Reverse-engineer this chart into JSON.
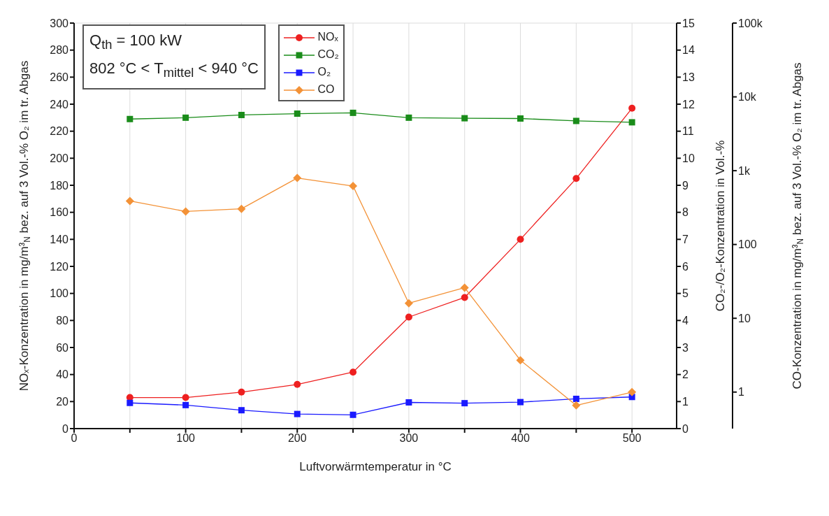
{
  "chart_data": {
    "type": "line",
    "xlabel": "Luftvorwärmtemperatur in °C",
    "ylabel": "NOₓ-Konzentration in mg/m³$_{N}$ bez. auf 3 Vol.-% O₂ im tr. Abgas",
    "y2label": "CO₂-/O₂-Konzentration  in Vol.-%",
    "y3label": "CO-Konzentration in mg/m³$_{N}$ bez. auf 3 Vol.-% O₂ im tr. Abgas",
    "annotations": [
      "Q$_{th}$ = 100 kW",
      "802 °C < T$_{mittel}$ < 940 °C"
    ],
    "x": [
      50,
      100,
      150,
      200,
      250,
      300,
      350,
      400,
      450,
      500
    ],
    "xlim": [
      0,
      540
    ],
    "xticks": [
      0,
      {
        "value": 50,
        "label": null
      },
      100,
      {
        "value": 150,
        "label": null
      },
      200,
      {
        "value": 250,
        "label": null
      },
      300,
      {
        "value": 350,
        "label": null
      },
      400,
      {
        "value": 450,
        "label": null
      },
      500
    ],
    "ylim": [
      0,
      300
    ],
    "yticks": [
      0,
      20,
      40,
      60,
      80,
      100,
      120,
      140,
      160,
      180,
      200,
      220,
      240,
      260,
      280,
      300
    ],
    "y2lim": [
      0,
      15
    ],
    "y2ticks": [
      0,
      1,
      2,
      3,
      4,
      5,
      6,
      7,
      8,
      9,
      10,
      11,
      12,
      13,
      14,
      15
    ],
    "y3lim": [
      0.32,
      100000
    ],
    "y3ticks": [
      1,
      10,
      100,
      {
        "value": 1000,
        "label": "1k"
      },
      {
        "value": 10000,
        "label": "10k"
      },
      {
        "value": 100000,
        "label": "100k"
      }
    ],
    "log": "y3",
    "grid": true,
    "legend": "top",
    "series": [
      {
        "name": "NOₓ",
        "color": "#ee2020",
        "marker": "circle",
        "values": [
          23,
          23,
          27,
          32.7,
          41.8,
          82.5,
          97,
          140,
          185,
          237
        ]
      },
      {
        "name": "CO₂",
        "color": "#1a8c1a",
        "marker": "square",
        "axis": "y2",
        "values": [
          11.45,
          11.5,
          11.6,
          11.65,
          11.68,
          11.5,
          11.48,
          11.47,
          11.38,
          11.33
        ]
      },
      {
        "name": "O₂",
        "color": "#1a1aff",
        "marker": "square",
        "axis": "y2",
        "values": [
          0.95,
          0.87,
          0.68,
          0.54,
          0.51,
          0.97,
          0.94,
          0.98,
          1.1,
          1.17
        ]
      },
      {
        "name": "CO",
        "color": "#f39237",
        "marker": "diamond",
        "axis": "y3",
        "values": [
          389,
          280,
          304,
          795,
          620,
          16,
          26,
          2.7,
          0.66,
          1.0
        ]
      }
    ]
  }
}
